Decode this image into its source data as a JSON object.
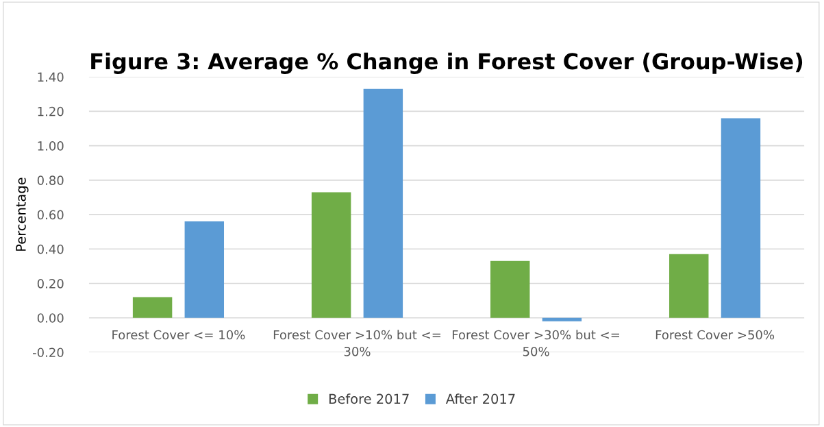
{
  "chart_data": {
    "type": "bar",
    "title": "Figure 3: Average % Change in Forest Cover (Group-Wise)",
    "ylabel": "Percentage",
    "categories": [
      "Forest Cover <= 10%",
      "Forest Cover >10% but <= 30%",
      "Forest Cover >30% but <= 50%",
      "Forest Cover >50%"
    ],
    "series": [
      {
        "name": "Before 2017",
        "color": "#70ad47",
        "values": [
          0.12,
          0.73,
          0.33,
          0.37
        ]
      },
      {
        "name": "After 2017",
        "color": "#5b9bd5",
        "values": [
          0.56,
          1.33,
          -0.02,
          1.16
        ]
      }
    ],
    "ylim": [
      -0.2,
      1.4
    ],
    "yticks": [
      {
        "value": -0.2,
        "label": "-0.20"
      },
      {
        "value": 0,
        "label": "0.00"
      },
      {
        "value": 0.2,
        "label": "0.20"
      },
      {
        "value": 0.4,
        "label": "0.40"
      },
      {
        "value": 0.6,
        "label": "0.60"
      },
      {
        "value": 0.8,
        "label": "0.80"
      },
      {
        "value": 1.0,
        "label": "1.00"
      },
      {
        "value": 1.2,
        "label": "1.20"
      },
      {
        "value": 1.4,
        "label": "1.40"
      }
    ],
    "grid": "y",
    "legend": "bottom"
  }
}
